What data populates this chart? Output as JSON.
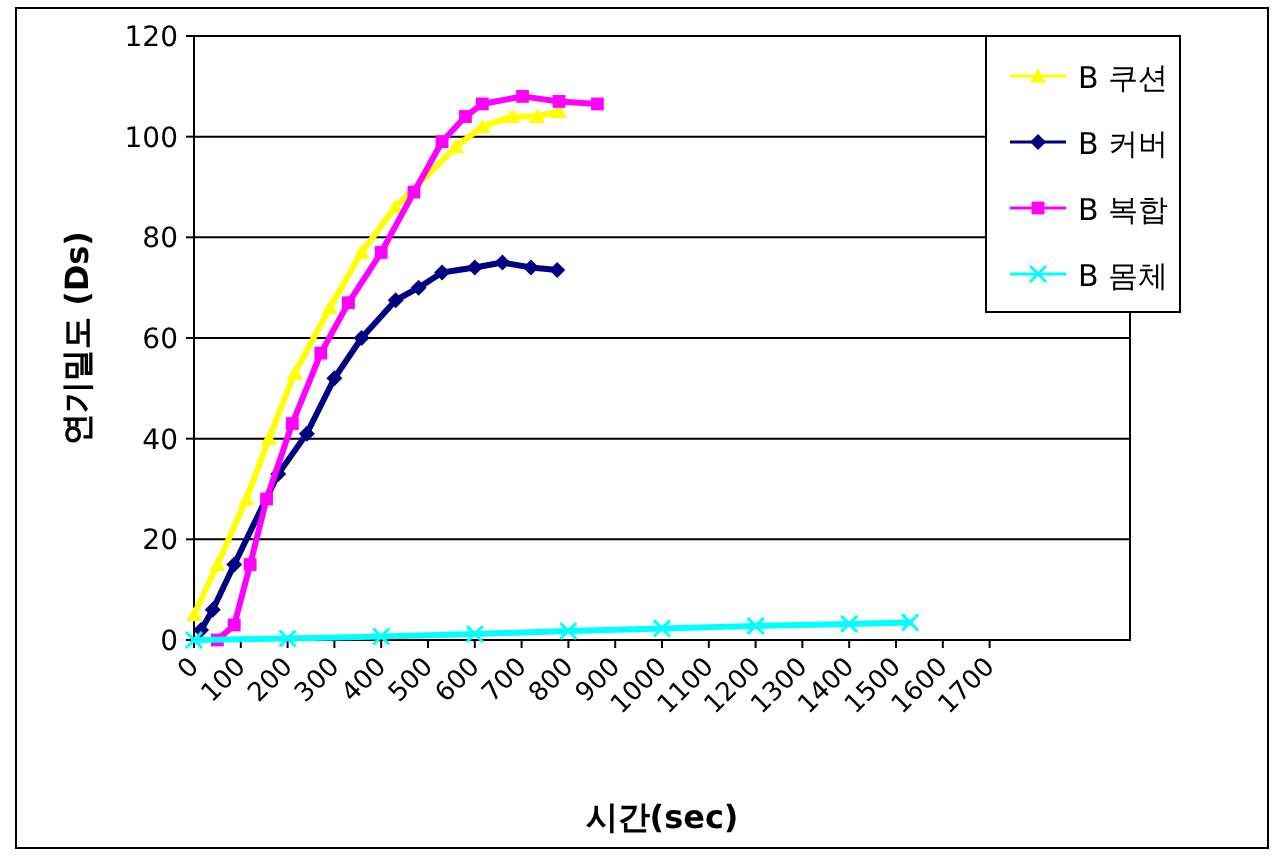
{
  "chart_data": {
    "type": "line",
    "xlabel": "시간(sec)",
    "ylabel": "연기밀도 (Ds)",
    "xlim": [
      0,
      2000
    ],
    "xticks": [
      0,
      100,
      200,
      300,
      400,
      500,
      600,
      700,
      800,
      900,
      1000,
      1100,
      1200,
      1300,
      1400,
      1500,
      1600,
      1700
    ],
    "ylim": [
      0,
      120
    ],
    "yticks": [
      0,
      20,
      40,
      60,
      80,
      100,
      120
    ],
    "grid": "y",
    "legend": "top right",
    "series": [
      {
        "name": "B 쿠션",
        "color": "#ffff00",
        "marker": "triangle",
        "x": [
          0,
          50,
          112,
          160,
          215,
          290,
          358,
          430,
          560,
          616,
          680,
          733,
          780
        ],
        "values": [
          5,
          15,
          28,
          40,
          53,
          66,
          77,
          86,
          98,
          102,
          104,
          104,
          105
        ]
      },
      {
        "name": "B 커버",
        "color": "#000080",
        "marker": "diamond",
        "x": [
          15,
          40,
          86,
          180,
          241,
          300,
          358,
          431,
          480,
          530,
          600,
          659,
          720,
          776
        ],
        "values": [
          2,
          6,
          15,
          33,
          41,
          52,
          60,
          67.5,
          70,
          73,
          74,
          75,
          74,
          73.5
        ]
      },
      {
        "name": "B 복합",
        "color": "#ff00ff",
        "marker": "square",
        "x": [
          50,
          86,
          120,
          155,
          210,
          271,
          330,
          400,
          470,
          530,
          580,
          616,
          702,
          780,
          862
        ],
        "values": [
          0,
          3,
          15,
          28,
          43,
          57,
          67,
          77,
          89,
          99,
          104,
          106.5,
          108,
          107,
          106.5
        ]
      },
      {
        "name": "B 몸체",
        "color": "#00ffff",
        "marker": "cross",
        "x": [
          0,
          200,
          400,
          600,
          800,
          1000,
          1200,
          1400,
          1530
        ],
        "values": [
          0,
          0.3,
          0.7,
          1.2,
          1.8,
          2.3,
          2.8,
          3.2,
          3.5
        ]
      }
    ]
  }
}
